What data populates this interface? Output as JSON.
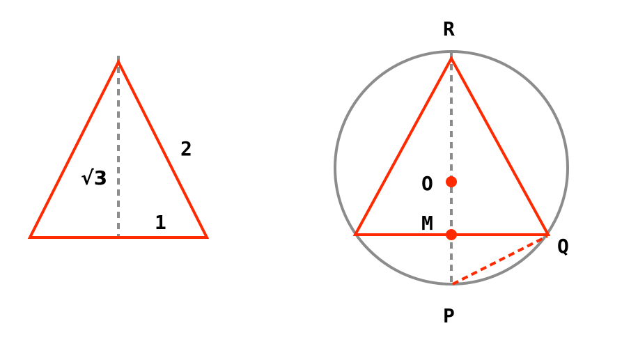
{
  "colors": {
    "triangle": "#ff2a00",
    "circle": "#8c8c8c",
    "guide": "#8c8c8c",
    "chord": "#ff2a00",
    "point": "#ff2a00",
    "text": "#000000"
  },
  "left_triangle": {
    "height_label": "√3",
    "side_label": "2",
    "half_base_label": "1"
  },
  "right_figure": {
    "top_vertex_label": "R",
    "center_label": "O",
    "midpoint_label": "M",
    "right_vertex_label": "Q",
    "bottom_point_label": "P"
  }
}
